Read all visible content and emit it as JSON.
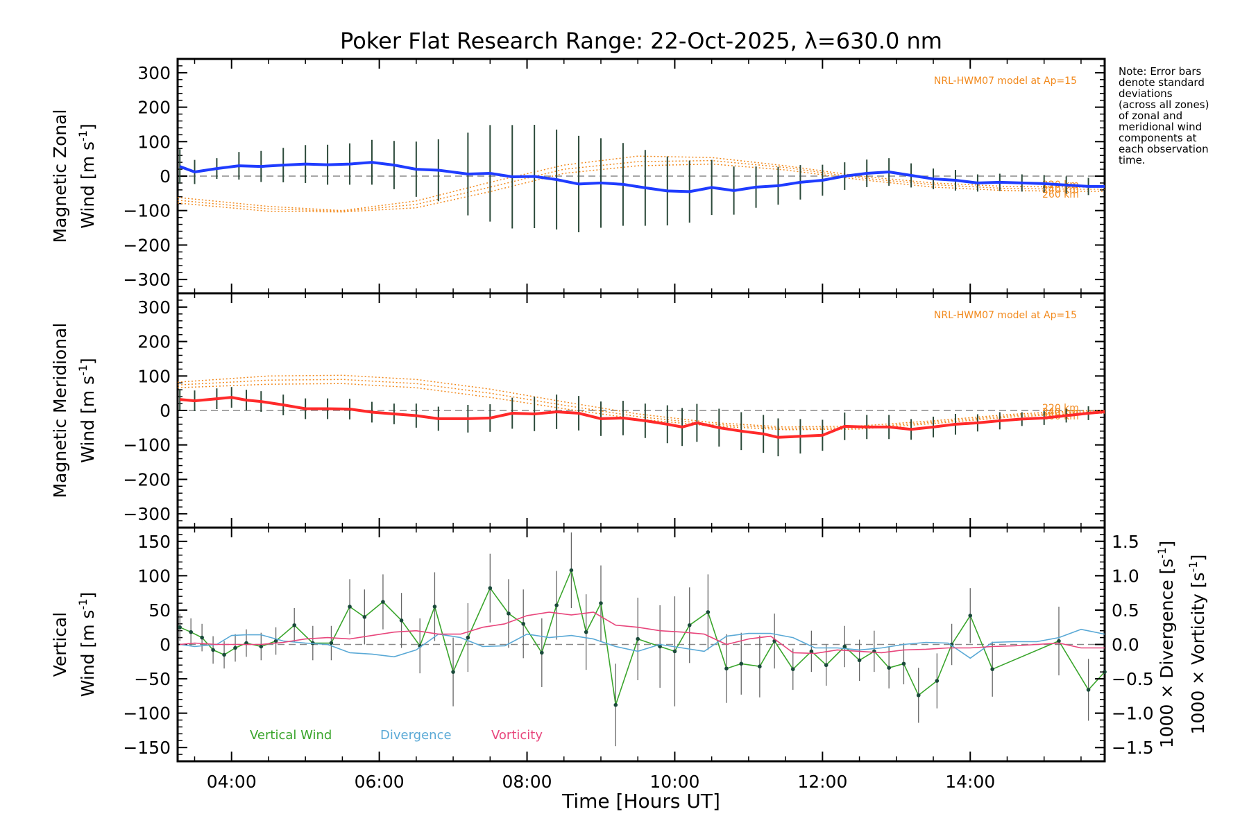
{
  "chart_data": [
    {
      "type": "line",
      "title": "Poker Flat Research Range: 22-Oct-2025, λ=630.0 nm",
      "xlabel": "Time [Hours UT]",
      "xlim": [
        3.27,
        15.82
      ],
      "x_ticks": [
        4,
        6,
        8,
        10,
        12,
        14
      ],
      "x_tick_labels": [
        "04:00",
        "06:00",
        "08:00",
        "10:00",
        "12:00",
        "14:00"
      ],
      "ylabel_line1": "Magnetic Zonal",
      "ylabel_line2": "Wind [m s",
      "ylabel_sup": "-1",
      "ylabel_close": "]",
      "ylim": [
        -340,
        340
      ],
      "y_ticks": [
        300,
        200,
        100,
        0,
        -100,
        -200,
        -300
      ],
      "y_tick_labels": [
        "300",
        "200",
        "100",
        "0",
        "−100",
        "−200",
        "−300"
      ],
      "model_label": "NRL-HWM07 model at Ap=15",
      "model_heights": [
        "220 km",
        "240 km",
        "260 km"
      ],
      "series": [
        {
          "name": "Zonal wind mean",
          "color": "#1f3cff",
          "x": [
            3.3,
            3.5,
            3.8,
            4.1,
            4.4,
            4.7,
            5.0,
            5.3,
            5.6,
            5.9,
            6.2,
            6.5,
            6.8,
            7.2,
            7.5,
            7.8,
            8.1,
            8.4,
            8.7,
            9.0,
            9.3,
            9.6,
            9.9,
            10.2,
            10.5,
            10.8,
            11.1,
            11.4,
            11.7,
            12.0,
            12.3,
            12.6,
            12.9,
            13.2,
            13.5,
            13.8,
            14.1,
            14.4,
            14.7,
            15.0,
            15.3,
            15.6,
            15.82
          ],
          "y": [
            28,
            12,
            22,
            30,
            28,
            32,
            35,
            33,
            35,
            40,
            32,
            20,
            17,
            6,
            8,
            -2,
            -1,
            -10,
            -23,
            -20,
            -24,
            -34,
            -43,
            -45,
            -33,
            -42,
            -32,
            -28,
            -18,
            -12,
            0,
            8,
            12,
            2,
            -8,
            -12,
            -20,
            -18,
            -20,
            -22,
            -26,
            -30,
            -30
          ],
          "error": [
            50,
            35,
            30,
            40,
            45,
            50,
            55,
            58,
            60,
            65,
            70,
            80,
            90,
            120,
            140,
            150,
            150,
            145,
            140,
            130,
            120,
            110,
            100,
            90,
            80,
            70,
            60,
            55,
            50,
            45,
            40,
            40,
            40,
            35,
            30,
            30,
            25,
            25,
            25,
            25,
            25,
            25,
            0
          ]
        }
      ],
      "model_curves": [
        {
          "name": "220 km",
          "x": [
            3.27,
            4.5,
            5.5,
            6.5,
            7.5,
            8.5,
            9.5,
            10.5,
            11.5,
            12.5,
            13.5,
            14.5,
            15.5,
            15.82
          ],
          "y": [
            -62,
            -88,
            -100,
            -72,
            -18,
            32,
            58,
            54,
            30,
            0,
            -20,
            -30,
            -32,
            -32
          ]
        },
        {
          "name": "240 km",
          "x": [
            3.27,
            4.5,
            5.5,
            6.5,
            7.5,
            8.5,
            9.5,
            10.5,
            11.5,
            12.5,
            13.5,
            14.5,
            15.5,
            15.82
          ],
          "y": [
            -70,
            -95,
            -102,
            -82,
            -32,
            20,
            42,
            45,
            25,
            -5,
            -25,
            -36,
            -38,
            -38
          ]
        },
        {
          "name": "260 km",
          "x": [
            3.27,
            4.5,
            5.5,
            6.5,
            7.5,
            8.5,
            9.5,
            10.5,
            11.5,
            12.5,
            13.5,
            14.5,
            15.5,
            15.82
          ],
          "y": [
            -78,
            -102,
            -104,
            -92,
            -45,
            8,
            30,
            35,
            18,
            -10,
            -32,
            -42,
            -44,
            -44
          ]
        }
      ]
    },
    {
      "type": "line",
      "xlim": [
        3.27,
        15.82
      ],
      "ylabel_line1": "Magnetic Meridional",
      "ylabel_line2": "Wind [m s",
      "ylabel_sup": "-1",
      "ylabel_close": "]",
      "ylim": [
        -340,
        340
      ],
      "y_ticks": [
        300,
        200,
        100,
        0,
        -100,
        -200,
        -300
      ],
      "y_tick_labels": [
        "300",
        "200",
        "100",
        "0",
        "−100",
        "−200",
        "−300"
      ],
      "model_label": "NRL-HWM07 model at Ap=15",
      "model_heights": [
        "220 km",
        "240 km",
        "260 km"
      ],
      "series": [
        {
          "name": "Meridional wind mean",
          "color": "#ff2a2a",
          "x": [
            3.3,
            3.5,
            3.8,
            4.0,
            4.2,
            4.4,
            4.7,
            5.0,
            5.3,
            5.6,
            5.9,
            6.2,
            6.5,
            6.8,
            7.2,
            7.5,
            7.8,
            8.1,
            8.4,
            8.7,
            9.0,
            9.3,
            9.6,
            9.9,
            10.1,
            10.3,
            10.6,
            10.9,
            11.2,
            11.4,
            11.7,
            12.0,
            12.3,
            12.6,
            12.9,
            13.2,
            13.5,
            13.8,
            14.1,
            14.4,
            14.7,
            15.0,
            15.3,
            15.6,
            15.82
          ],
          "y": [
            32,
            28,
            34,
            38,
            30,
            26,
            16,
            5,
            5,
            4,
            -5,
            -10,
            -15,
            -24,
            -24,
            -22,
            -8,
            -10,
            -4,
            -8,
            -24,
            -22,
            -30,
            -40,
            -48,
            -36,
            -50,
            -60,
            -68,
            -78,
            -75,
            -72,
            -46,
            -48,
            -48,
            -55,
            -48,
            -40,
            -36,
            -30,
            -25,
            -22,
            -15,
            -8,
            -4
          ],
          "error": [
            30,
            30,
            30,
            30,
            30,
            30,
            30,
            30,
            30,
            30,
            30,
            30,
            35,
            35,
            40,
            40,
            45,
            50,
            50,
            50,
            50,
            50,
            50,
            55,
            55,
            55,
            55,
            55,
            55,
            55,
            50,
            45,
            40,
            35,
            35,
            30,
            30,
            30,
            25,
            25,
            20,
            20,
            20,
            20,
            0
          ]
        }
      ],
      "model_curves": [
        {
          "name": "220 km",
          "x": [
            3.27,
            4.5,
            5.5,
            6.5,
            7.5,
            8.5,
            9.5,
            10.5,
            11.5,
            12.5,
            13.5,
            14.5,
            15.5,
            15.82
          ],
          "y": [
            82,
            100,
            102,
            90,
            62,
            25,
            -10,
            -35,
            -48,
            -45,
            -30,
            -12,
            0,
            0
          ]
        },
        {
          "name": "240 km",
          "x": [
            3.27,
            4.5,
            5.5,
            6.5,
            7.5,
            8.5,
            9.5,
            10.5,
            11.5,
            12.5,
            13.5,
            14.5,
            15.5,
            15.82
          ],
          "y": [
            74,
            88,
            90,
            78,
            50,
            15,
            -18,
            -40,
            -52,
            -50,
            -34,
            -16,
            -4,
            -4
          ]
        },
        {
          "name": "260 km",
          "x": [
            3.27,
            4.5,
            5.5,
            6.5,
            7.5,
            8.5,
            9.5,
            10.5,
            11.5,
            12.5,
            13.5,
            14.5,
            15.5,
            15.82
          ],
          "y": [
            66,
            76,
            78,
            66,
            38,
            5,
            -25,
            -45,
            -56,
            -54,
            -38,
            -20,
            -8,
            -8
          ]
        }
      ]
    },
    {
      "type": "line",
      "xlim": [
        3.27,
        15.82
      ],
      "ylabel_line1": "Vertical",
      "ylabel_line2": "Wind [m s",
      "ylabel_sup": "-1",
      "ylabel_close": "]",
      "ylim": [
        -170,
        170
      ],
      "y_ticks": [
        150,
        100,
        50,
        0,
        -50,
        -100,
        -150
      ],
      "y_tick_labels": [
        "150",
        "100",
        "50",
        "0",
        "−50",
        "−100",
        "−150"
      ],
      "y2lim": [
        -1.7,
        1.7
      ],
      "y2_ticks": [
        1.5,
        1.0,
        0.5,
        0.0,
        -0.5,
        -1.0,
        -1.5
      ],
      "y2_tick_labels": [
        "1.5",
        "1.0",
        "0.5",
        "0.0",
        "−0.5",
        "−1.0",
        "−1.5"
      ],
      "y2label_divergence": "1000 × Divergence [s",
      "y2label_vorticity": "1000 × Vorticity [s",
      "y2label_sup": "-1",
      "y2label_close": "]",
      "legend": [
        "Vertical Wind",
        "Divergence",
        "Vorticity"
      ],
      "series": [
        {
          "name": "Vertical Wind",
          "color": "#3aa52c",
          "axis": "left",
          "x": [
            3.3,
            3.45,
            3.6,
            3.75,
            3.9,
            4.05,
            4.2,
            4.4,
            4.6,
            4.85,
            5.1,
            5.35,
            5.6,
            5.8,
            6.05,
            6.3,
            6.55,
            6.75,
            7.0,
            7.2,
            7.5,
            7.75,
            7.95,
            8.2,
            8.4,
            8.6,
            8.8,
            9.0,
            9.2,
            9.5,
            9.8,
            10.0,
            10.2,
            10.45,
            10.7,
            10.9,
            11.15,
            11.35,
            11.6,
            11.85,
            12.05,
            12.3,
            12.5,
            12.7,
            12.9,
            13.1,
            13.3,
            13.55,
            13.75,
            14.0,
            14.3,
            15.2,
            15.6,
            15.82
          ],
          "y": [
            25,
            18,
            10,
            -8,
            -15,
            -5,
            2,
            -3,
            5,
            28,
            2,
            2,
            55,
            40,
            62,
            35,
            -2,
            55,
            -40,
            10,
            82,
            45,
            30,
            -12,
            57,
            108,
            18,
            60,
            -88,
            8,
            -3,
            -10,
            28,
            47,
            -35,
            -28,
            -32,
            5,
            -36,
            -10,
            -30,
            -3,
            -23,
            -10,
            -34,
            -28,
            -74,
            -53,
            0,
            42,
            -36,
            5,
            -66,
            -40
          ],
          "error": [
            20,
            20,
            20,
            20,
            20,
            20,
            20,
            20,
            20,
            25,
            25,
            25,
            40,
            40,
            40,
            40,
            40,
            50,
            50,
            50,
            50,
            50,
            50,
            50,
            50,
            55,
            55,
            55,
            60,
            60,
            60,
            80,
            55,
            55,
            50,
            45,
            45,
            40,
            30,
            30,
            30,
            30,
            30,
            30,
            30,
            30,
            40,
            40,
            30,
            40,
            40,
            50,
            45,
            0
          ]
        },
        {
          "name": "Divergence",
          "color": "#5aa9d6",
          "axis": "right",
          "x": [
            3.3,
            3.5,
            3.8,
            4.0,
            4.2,
            4.4,
            4.7,
            5.0,
            5.3,
            5.6,
            5.9,
            6.2,
            6.5,
            6.8,
            7.1,
            7.4,
            7.7,
            8.0,
            8.3,
            8.6,
            8.9,
            9.2,
            9.5,
            9.8,
            10.1,
            10.4,
            10.7,
            11.0,
            11.3,
            11.6,
            11.9,
            12.2,
            12.5,
            12.8,
            13.1,
            13.4,
            13.7,
            14.0,
            14.3,
            14.6,
            14.9,
            15.2,
            15.5,
            15.82
          ],
          "y": [
            0.0,
            -0.03,
            0.0,
            0.13,
            0.14,
            0.14,
            0.05,
            0.02,
            0.0,
            -0.12,
            -0.14,
            -0.18,
            -0.08,
            0.15,
            0.1,
            -0.03,
            -0.02,
            0.15,
            0.1,
            0.13,
            0.08,
            -0.03,
            -0.1,
            0.0,
            -0.05,
            -0.1,
            0.12,
            0.16,
            0.16,
            0.1,
            -0.05,
            -0.05,
            -0.08,
            -0.05,
            0.0,
            0.03,
            0.02,
            -0.2,
            0.03,
            0.04,
            0.04,
            0.1,
            0.22,
            0.15
          ]
        },
        {
          "name": "Vorticity",
          "color": "#e8467c",
          "axis": "right",
          "x": [
            3.3,
            3.5,
            3.8,
            4.0,
            4.2,
            4.4,
            4.7,
            5.0,
            5.3,
            5.6,
            5.9,
            6.2,
            6.5,
            6.8,
            7.1,
            7.4,
            7.7,
            8.0,
            8.3,
            8.6,
            8.9,
            9.2,
            9.5,
            9.8,
            10.1,
            10.4,
            10.7,
            11.0,
            11.3,
            11.6,
            11.9,
            12.2,
            12.5,
            12.8,
            13.1,
            13.4,
            13.7,
            14.0,
            14.3,
            14.6,
            14.9,
            15.2,
            15.5,
            15.82
          ],
          "y": [
            0.0,
            0.02,
            0.0,
            0.0,
            0.0,
            0.0,
            0.03,
            0.08,
            0.1,
            0.08,
            0.13,
            0.18,
            0.2,
            0.15,
            0.15,
            0.25,
            0.3,
            0.42,
            0.47,
            0.43,
            0.47,
            0.28,
            0.25,
            0.2,
            0.18,
            0.15,
            0.0,
            0.08,
            0.12,
            -0.12,
            -0.13,
            -0.08,
            -0.1,
            -0.12,
            -0.08,
            -0.07,
            -0.05,
            -0.05,
            -0.03,
            -0.02,
            0.0,
            0.02,
            -0.05,
            -0.05
          ]
        }
      ]
    }
  ],
  "note": {
    "lines": [
      "Note: Error bars",
      "denote standard",
      "deviations",
      "(across all zones)",
      "of zonal and",
      "meridional wind",
      "components at",
      "each observation",
      "time."
    ]
  }
}
